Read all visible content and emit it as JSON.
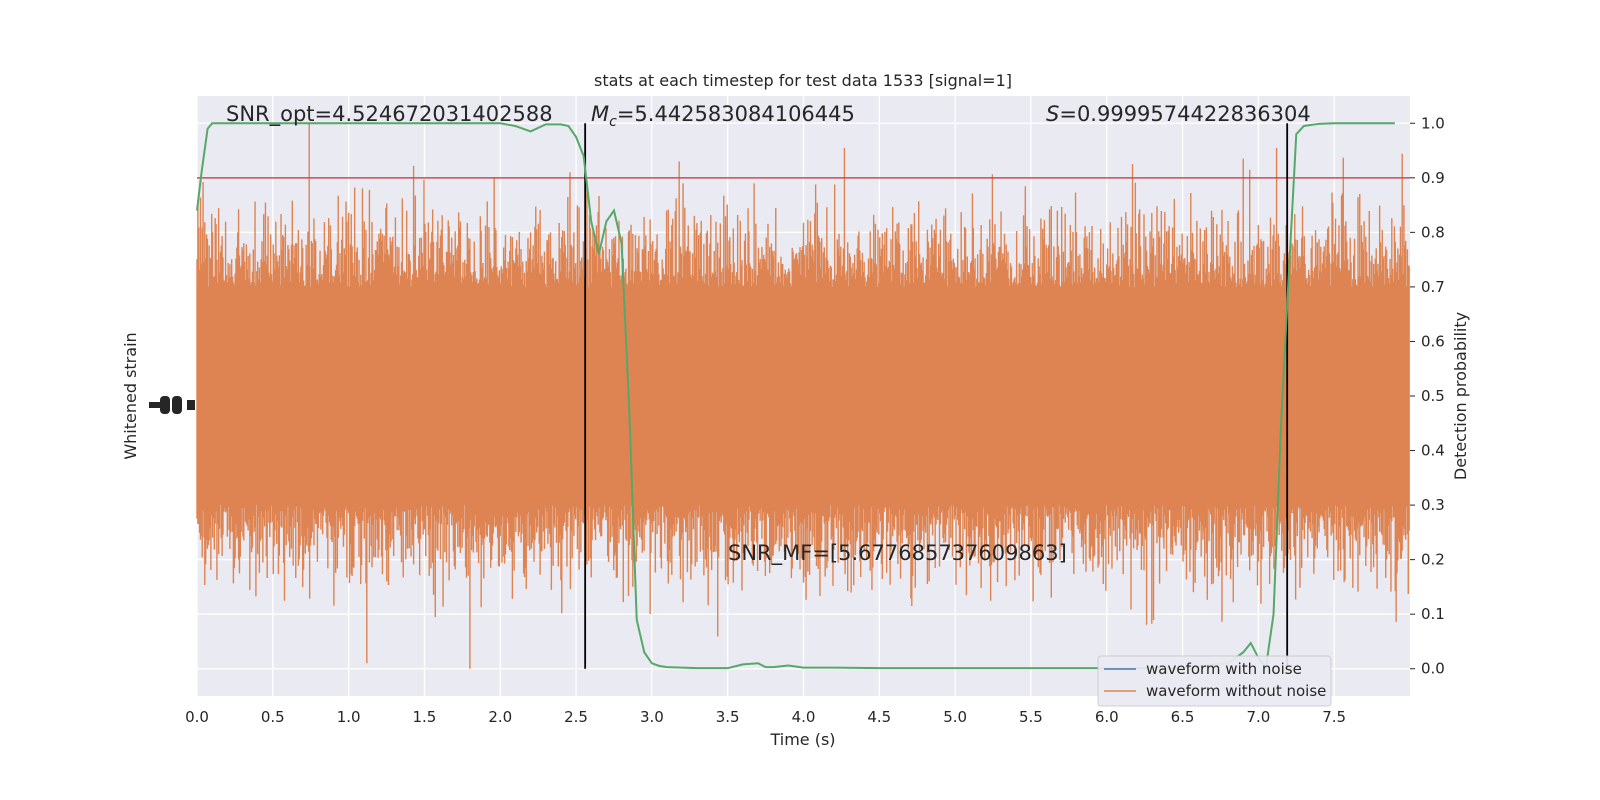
{
  "chart_data": {
    "type": "line",
    "title": "stats at each timestep for test data 1533 [signal=1]",
    "xlabel": "Time (s)",
    "ylabel_left": "Whitened strain",
    "ylabel_right": "Detection probability",
    "xlim": [
      0,
      8
    ],
    "ylim_right": [
      -0.05,
      1.05
    ],
    "x_ticks": [
      0.0,
      0.5,
      1.0,
      1.5,
      2.0,
      2.5,
      3.0,
      3.5,
      4.0,
      4.5,
      5.0,
      5.5,
      6.0,
      6.5,
      7.0,
      7.5
    ],
    "x_tick_labels": [
      "0.0",
      "0.5",
      "1.0",
      "1.5",
      "2.0",
      "2.5",
      "3.0",
      "3.5",
      "4.0",
      "4.5",
      "5.0",
      "5.5",
      "6.0",
      "6.5",
      "7.0",
      "7.5"
    ],
    "y_right_ticks": [
      0.0,
      0.1,
      0.2,
      0.3,
      0.4,
      0.5,
      0.6,
      0.7,
      0.8,
      0.9,
      1.0
    ],
    "y_right_tick_labels": [
      "0.0",
      "0.1",
      "0.2",
      "0.3",
      "0.4",
      "0.5",
      "0.6",
      "0.7",
      "0.8",
      "0.9",
      "1.0"
    ],
    "grid": true,
    "legend_position": "bottom-right",
    "threshold": 0.9,
    "vertical_lines": [
      2.56,
      7.19
    ],
    "annotations": {
      "snr_opt": "SNR_opt=4.524672031402588",
      "mc_symbol": "M",
      "mc_sub": "c",
      "mc_value": "=5.442583084106445",
      "s_symbol": "S",
      "s_value": "=0.9999574422836304",
      "snr_mf": "SNR_MF=[5.677685737609863]"
    },
    "series": [
      {
        "name": "waveform with noise",
        "color": "#4c72b0"
      },
      {
        "name": "waveform without noise",
        "color": "#dd8452"
      },
      {
        "color": "#55a868",
        "x": [
          0.0,
          0.03,
          0.07,
          0.1,
          0.15,
          0.2,
          0.3,
          0.4,
          0.5,
          0.6,
          0.7,
          0.8,
          0.9,
          1.0,
          1.1,
          1.2,
          1.3,
          1.4,
          1.5,
          1.6,
          1.7,
          1.8,
          1.9,
          2.0,
          2.1,
          2.2,
          2.3,
          2.4,
          2.45,
          2.5,
          2.55,
          2.6,
          2.65,
          2.7,
          2.75,
          2.8,
          2.85,
          2.9,
          2.95,
          3.0,
          3.05,
          3.1,
          3.2,
          3.3,
          3.4,
          3.5,
          3.6,
          3.7,
          3.75,
          3.8,
          3.9,
          4.0,
          4.2,
          4.5,
          5.0,
          5.5,
          6.0,
          6.5,
          6.8,
          6.9,
          6.95,
          7.0,
          7.05,
          7.1,
          7.15,
          7.2,
          7.25,
          7.3,
          7.4,
          7.5,
          7.6,
          7.7,
          7.8,
          7.9
        ],
        "y": [
          0.84,
          0.91,
          0.99,
          1.0,
          1.0,
          1.0,
          1.0,
          1.0,
          1.0,
          1.0,
          1.0,
          1.0,
          1.0,
          1.0,
          1.0,
          1.0,
          1.0,
          1.0,
          1.0,
          1.0,
          1.0,
          1.0,
          1.0,
          1.0,
          0.995,
          0.985,
          0.998,
          0.998,
          0.995,
          0.975,
          0.94,
          0.82,
          0.76,
          0.82,
          0.84,
          0.78,
          0.48,
          0.09,
          0.03,
          0.01,
          0.005,
          0.003,
          0.002,
          0.001,
          0.001,
          0.001,
          0.008,
          0.01,
          0.003,
          0.003,
          0.006,
          0.002,
          0.002,
          0.001,
          0.001,
          0.001,
          0.001,
          0.001,
          0.01,
          0.03,
          0.047,
          0.02,
          0.003,
          0.1,
          0.45,
          0.72,
          0.98,
          0.995,
          0.999,
          1.0,
          1.0,
          1.0,
          1.0,
          1.0
        ]
      }
    ],
    "noise_band": {
      "color": "#dd8452",
      "baseline": 0.5,
      "dense_amplitude": 0.2,
      "peak_max": 1.0,
      "peak_min": 0.0
    }
  }
}
